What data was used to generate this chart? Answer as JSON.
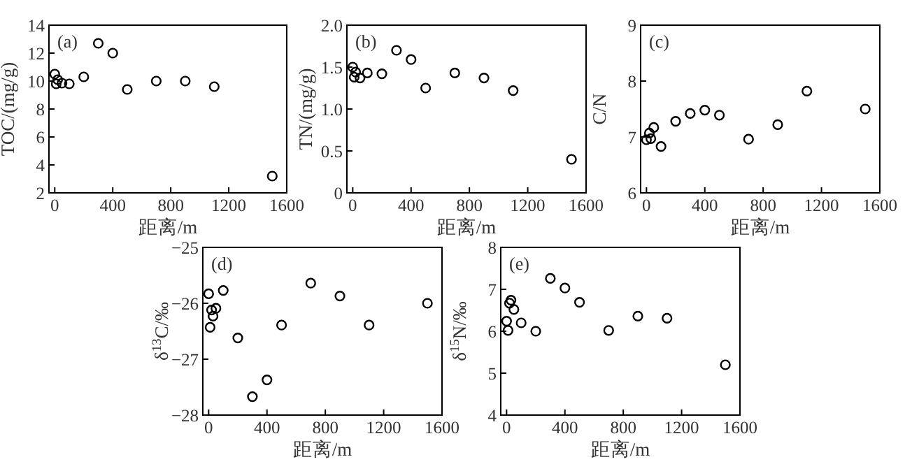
{
  "chart_data": [
    {
      "type": "scatter",
      "xlabel": "距离/m",
      "ylabel": "TOC/(mg/g)",
      "annotations": [
        "(a)"
      ],
      "marker": "circle",
      "color": "#000000",
      "x": [
        0,
        10,
        20,
        50,
        100,
        200,
        300,
        400,
        500,
        700,
        900,
        1100,
        1500
      ],
      "values": [
        10.5,
        9.8,
        10.1,
        9.85,
        9.8,
        10.3,
        12.7,
        12.0,
        9.4,
        10.0,
        10.0,
        9.6,
        3.2
      ],
      "xlim": [
        -40,
        1600
      ],
      "xticks": [
        0,
        400,
        800,
        1200,
        1600
      ],
      "ylim": [
        2,
        14
      ],
      "yticks": [
        2,
        4,
        6,
        8,
        10,
        12,
        14
      ]
    },
    {
      "type": "scatter",
      "xlabel": "距离/m",
      "ylabel": "TN/(mg/g)",
      "annotations": [
        "(b)"
      ],
      "marker": "circle",
      "color": "#000000",
      "x": [
        0,
        10,
        20,
        50,
        100,
        200,
        300,
        400,
        500,
        700,
        900,
        1100,
        1500
      ],
      "values": [
        1.5,
        1.38,
        1.44,
        1.37,
        1.43,
        1.42,
        1.7,
        1.59,
        1.25,
        1.43,
        1.37,
        1.22,
        0.4
      ],
      "xlim": [
        -40,
        1600
      ],
      "xticks": [
        0,
        400,
        800,
        1200,
        1600
      ],
      "ylim": [
        0,
        2
      ],
      "yticks": [
        0,
        {
          "value": 0.5,
          "label": "0.5"
        },
        {
          "value": 1,
          "label": "1.0"
        },
        {
          "value": 1.5,
          "label": "1.5"
        },
        {
          "value": 2,
          "label": "2.0"
        }
      ]
    },
    {
      "type": "scatter",
      "xlabel": "距离/m",
      "ylabel": "C/N",
      "annotations": [
        "(c)"
      ],
      "marker": "circle",
      "color": "#000000",
      "x": [
        0,
        20,
        30,
        50,
        100,
        200,
        300,
        400,
        500,
        700,
        900,
        1100,
        1500
      ],
      "values": [
        6.95,
        7.07,
        6.97,
        7.17,
        6.83,
        7.28,
        7.42,
        7.48,
        7.39,
        6.96,
        7.22,
        7.82,
        7.5
      ],
      "xlim": [
        -40,
        1600
      ],
      "xticks": [
        0,
        400,
        800,
        1200,
        1600
      ],
      "ylim": [
        6,
        9
      ],
      "yticks": [
        6,
        7,
        8,
        9
      ]
    },
    {
      "type": "scatter",
      "xlabel": "距离/m",
      "ylabel": "δ$^{13}$C/‰",
      "annotations": [
        "(d)"
      ],
      "marker": "circle",
      "color": "#000000",
      "x": [
        0,
        10,
        20,
        30,
        50,
        100,
        200,
        300,
        400,
        500,
        700,
        900,
        1100,
        1500
      ],
      "values": [
        -25.83,
        -26.43,
        -26.12,
        -26.23,
        -26.09,
        -25.77,
        -26.62,
        -27.67,
        -27.37,
        -26.39,
        -25.64,
        -25.87,
        -26.39,
        -26.0
      ],
      "xlim": [
        -40,
        1600
      ],
      "xticks": [
        0,
        400,
        800,
        1200,
        1600
      ],
      "ylim": [
        -28,
        -25
      ],
      "yticks": [
        {
          "value": -28,
          "label": "−28"
        },
        {
          "value": -27,
          "label": "−27"
        },
        {
          "value": -26,
          "label": "−26"
        },
        {
          "value": -25,
          "label": "−25"
        }
      ]
    },
    {
      "type": "scatter",
      "xlabel": "距离/m",
      "ylabel": "δ$^{15}$N/‰",
      "annotations": [
        "(e)"
      ],
      "marker": "circle",
      "color": "#000000",
      "x": [
        0,
        10,
        20,
        30,
        50,
        100,
        200,
        300,
        400,
        500,
        700,
        900,
        1100,
        1500
      ],
      "values": [
        6.24,
        6.02,
        6.67,
        6.74,
        6.52,
        6.2,
        6.0,
        7.26,
        7.03,
        6.69,
        6.02,
        6.36,
        6.31,
        5.2
      ],
      "xlim": [
        -40,
        1600
      ],
      "xticks": [
        0,
        400,
        800,
        1200,
        1600
      ],
      "ylim": [
        4,
        8
      ],
      "yticks": [
        4,
        5,
        6,
        7,
        8
      ]
    }
  ]
}
